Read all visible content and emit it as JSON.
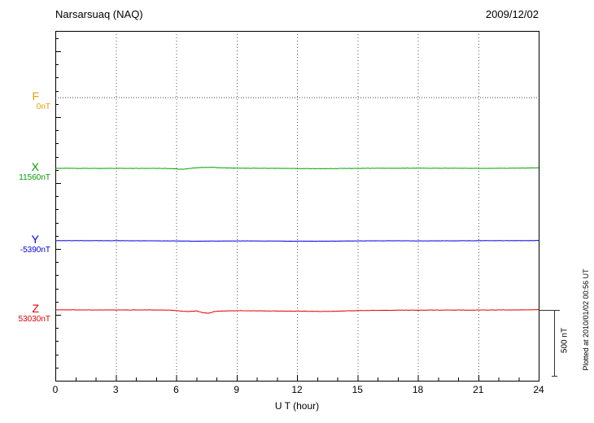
{
  "header": {
    "title": "Narsarsuaq (NAQ)",
    "date": "2009/12/02"
  },
  "chart_data": {
    "type": "line",
    "title": "Narsarsuaq (NAQ)",
    "date": "2009/12/02",
    "xlabel": "U T (hour)",
    "x_range": [
      0,
      24
    ],
    "x_ticks": [
      0,
      3,
      6,
      9,
      12,
      15,
      18,
      21,
      24
    ],
    "x_minor_tick_hours": 1,
    "grid": "vertical-dotted",
    "scale_bar": {
      "label": "500 nT",
      "nT": 500
    },
    "plotted_note": "Plotted at 2010/01/02 00:56 UT",
    "series": [
      {
        "name": "F",
        "baseline_label": "0nT",
        "baseline_value": 0,
        "label_color": "#E8A000",
        "trace_color": "#404040",
        "trace_style": "dotted",
        "noise_nT": 0,
        "points": [
          [
            0,
            0
          ],
          [
            24,
            0
          ]
        ]
      },
      {
        "name": "X",
        "baseline_label": "11560nT",
        "baseline_value": 11560,
        "label_color": "#00A000",
        "trace_color": "#00A000",
        "trace_style": "solid",
        "noise_nT": 1.2,
        "points": [
          [
            0,
            1
          ],
          [
            2,
            0
          ],
          [
            4,
            0
          ],
          [
            5.5,
            0
          ],
          [
            6,
            -4
          ],
          [
            6.3,
            -7
          ],
          [
            6.8,
            2
          ],
          [
            7.2,
            7
          ],
          [
            7.8,
            8
          ],
          [
            8.3,
            4
          ],
          [
            9,
            2
          ],
          [
            10,
            1
          ],
          [
            11,
            0
          ],
          [
            12,
            -1
          ],
          [
            13,
            -2
          ],
          [
            14,
            -1
          ],
          [
            15,
            0
          ],
          [
            16,
            1
          ],
          [
            17,
            1
          ],
          [
            18,
            2
          ],
          [
            19,
            1
          ],
          [
            20,
            1
          ],
          [
            21,
            0
          ],
          [
            22,
            1
          ],
          [
            23,
            2
          ],
          [
            24,
            4
          ]
        ]
      },
      {
        "name": "Y",
        "baseline_label": "-5390nT",
        "baseline_value": -5390,
        "label_color": "#0000E0",
        "trace_color": "#0000E0",
        "trace_style": "solid",
        "noise_nT": 0.9,
        "points": [
          [
            0,
            1
          ],
          [
            2,
            1
          ],
          [
            4,
            0
          ],
          [
            6,
            -1
          ],
          [
            7,
            -3
          ],
          [
            8,
            -2
          ],
          [
            9,
            -1
          ],
          [
            10,
            -1
          ],
          [
            11,
            -2
          ],
          [
            12,
            -3
          ],
          [
            13,
            -3
          ],
          [
            14,
            -2
          ],
          [
            15,
            -1
          ],
          [
            16,
            0
          ],
          [
            17,
            0
          ],
          [
            18,
            -1
          ],
          [
            19,
            0
          ],
          [
            20,
            0
          ],
          [
            21,
            1
          ],
          [
            22,
            1
          ],
          [
            23,
            1
          ],
          [
            24,
            2
          ]
        ]
      },
      {
        "name": "Z",
        "baseline_label": "53030nT",
        "baseline_value": 53030,
        "label_color": "#E00000",
        "trace_color": "#E00000",
        "trace_style": "solid",
        "noise_nT": 1.2,
        "points": [
          [
            0,
            1
          ],
          [
            2,
            0
          ],
          [
            4,
            0
          ],
          [
            5,
            0
          ],
          [
            5.8,
            -2
          ],
          [
            6.2,
            -8
          ],
          [
            6.6,
            -12
          ],
          [
            7,
            -8
          ],
          [
            7.3,
            -20
          ],
          [
            7.6,
            -26
          ],
          [
            7.9,
            -12
          ],
          [
            8.3,
            -8
          ],
          [
            9,
            -6
          ],
          [
            10,
            -7
          ],
          [
            11,
            -8
          ],
          [
            12,
            -9
          ],
          [
            13,
            -11
          ],
          [
            13.5,
            -12
          ],
          [
            14,
            -9
          ],
          [
            15,
            -5
          ],
          [
            16,
            -3
          ],
          [
            17,
            -2
          ],
          [
            18,
            -2
          ],
          [
            19,
            -1
          ],
          [
            20,
            -1
          ],
          [
            21,
            -1
          ],
          [
            22,
            0
          ],
          [
            23,
            0
          ],
          [
            24,
            2
          ]
        ]
      }
    ]
  }
}
